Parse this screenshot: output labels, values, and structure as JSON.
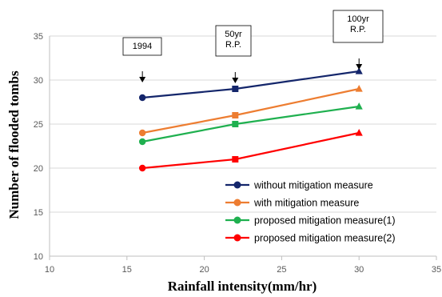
{
  "chart_data": {
    "type": "line",
    "xlabel": "Rainfall intensity(mm/hr)",
    "ylabel": "Number of flooded tombs",
    "xlim": [
      10,
      35
    ],
    "ylim": [
      10,
      35
    ],
    "xticks": [
      "10",
      "15",
      "20",
      "25",
      "30",
      "35"
    ],
    "yticks": [
      "10",
      "15",
      "20",
      "25",
      "30",
      "35"
    ],
    "grid": "horizontal",
    "legend_position": "lower-right",
    "series": [
      {
        "name": "without mitigation measure",
        "color": "#14266b",
        "marker": "circle",
        "x": [
          16,
          22,
          30
        ],
        "y": [
          28,
          29,
          31
        ],
        "markers": [
          "circle",
          "square",
          "triangle"
        ]
      },
      {
        "name": "with mitigation measure",
        "color": "#ed7d31",
        "marker": "circle",
        "x": [
          16,
          22,
          30
        ],
        "y": [
          24,
          26,
          29
        ],
        "markers": [
          "circle",
          "square",
          "triangle"
        ]
      },
      {
        "name": "proposed mitigation measure(1)",
        "color": "#1fb04f",
        "marker": "circle",
        "x": [
          16,
          22,
          30
        ],
        "y": [
          23,
          25,
          27
        ],
        "markers": [
          "circle",
          "square",
          "triangle"
        ]
      },
      {
        "name": "proposed mitigation measure(2)",
        "color": "#ff0000",
        "marker": "circle",
        "x": [
          16,
          22,
          30
        ],
        "y": [
          20,
          21,
          24
        ],
        "markers": [
          "circle",
          "square",
          "triangle"
        ]
      }
    ],
    "annotations": [
      {
        "lines": [
          "1994"
        ],
        "x": 16
      },
      {
        "lines": [
          "50yr",
          "R.P."
        ],
        "x": 22
      },
      {
        "lines": [
          "100yr",
          "R.P."
        ],
        "x": 30
      }
    ]
  }
}
